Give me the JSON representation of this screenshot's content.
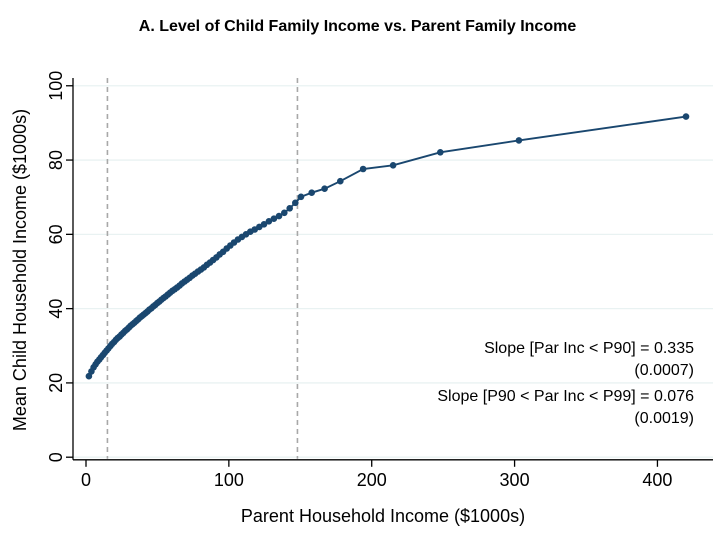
{
  "figure": {
    "title": "A. Level of Child Family Income vs. Parent Family Income"
  },
  "annotations": {
    "slope1_label": "Slope [Par Inc < P90] = 0.335",
    "slope1_se": "(0.0007)",
    "slope2_label": "Slope [P90 < Par Inc < P99] = 0.076",
    "slope2_se": "(0.0019)"
  },
  "chart_data": {
    "type": "scatter",
    "title": "A. Level of Child Family Income vs. Parent Family Income",
    "xlabel": "Parent Household Income ($1000s)",
    "ylabel": "Mean Child Household Income ($1000s)",
    "xlim": [
      -9,
      440
    ],
    "ylim": [
      -1,
      102
    ],
    "xticks": [
      0,
      100,
      200,
      300,
      400
    ],
    "yticks": [
      0,
      20,
      40,
      60,
      80,
      100
    ],
    "grid": "horizontal",
    "reference_lines_x": [
      15,
      148
    ],
    "reference_line_style": "dashed",
    "legend": "none",
    "series": [
      {
        "name": "mean-child-income-by-parent-income-bin",
        "marker": "circle",
        "line": true,
        "points": [
          [
            2.0,
            21.8
          ],
          [
            3.8,
            23.1
          ],
          [
            5.3,
            24.2
          ],
          [
            6.7,
            25.0
          ],
          [
            8.0,
            25.7
          ],
          [
            9.3,
            26.3
          ],
          [
            10.5,
            26.9
          ],
          [
            11.8,
            27.5
          ],
          [
            13.1,
            28.1
          ],
          [
            14.4,
            28.7
          ],
          [
            15.7,
            29.3
          ],
          [
            17.0,
            29.9
          ],
          [
            18.3,
            30.5
          ],
          [
            19.6,
            31.0
          ],
          [
            20.9,
            31.6
          ],
          [
            22.2,
            32.1
          ],
          [
            23.5,
            32.5
          ],
          [
            24.8,
            33.0
          ],
          [
            26.1,
            33.5
          ],
          [
            27.4,
            34.0
          ],
          [
            28.7,
            34.4
          ],
          [
            30.0,
            34.9
          ],
          [
            31.3,
            35.4
          ],
          [
            32.6,
            35.8
          ],
          [
            33.9,
            36.2
          ],
          [
            35.2,
            36.7
          ],
          [
            36.5,
            37.1
          ],
          [
            37.8,
            37.6
          ],
          [
            39.1,
            38.0
          ],
          [
            40.4,
            38.4
          ],
          [
            41.7,
            38.8
          ],
          [
            43.0,
            39.2
          ],
          [
            44.3,
            39.7
          ],
          [
            45.7,
            40.1
          ],
          [
            47.1,
            40.6
          ],
          [
            48.5,
            41.0
          ],
          [
            49.9,
            41.5
          ],
          [
            51.3,
            41.9
          ],
          [
            52.8,
            42.4
          ],
          [
            54.3,
            42.9
          ],
          [
            55.8,
            43.3
          ],
          [
            57.3,
            43.8
          ],
          [
            58.9,
            44.3
          ],
          [
            60.5,
            44.8
          ],
          [
            62.1,
            45.2
          ],
          [
            63.8,
            45.7
          ],
          [
            65.5,
            46.2
          ],
          [
            67.2,
            46.8
          ],
          [
            69.0,
            47.3
          ],
          [
            70.8,
            47.8
          ],
          [
            72.6,
            48.3
          ],
          [
            74.5,
            48.9
          ],
          [
            76.4,
            49.4
          ],
          [
            78.4,
            50.0
          ],
          [
            80.4,
            50.5
          ],
          [
            82.5,
            51.1
          ],
          [
            84.6,
            51.8
          ],
          [
            86.8,
            52.4
          ],
          [
            89.0,
            53.1
          ],
          [
            91.3,
            53.8
          ],
          [
            93.6,
            54.6
          ],
          [
            96.0,
            55.3
          ],
          [
            98.5,
            56.2
          ],
          [
            101.0,
            57.0
          ],
          [
            103.6,
            57.8
          ],
          [
            106.3,
            58.6
          ],
          [
            109.1,
            59.3
          ],
          [
            112.0,
            60.0
          ],
          [
            115.0,
            60.7
          ],
          [
            118.1,
            61.3
          ],
          [
            121.3,
            62.0
          ],
          [
            124.6,
            62.7
          ],
          [
            128.0,
            63.5
          ],
          [
            131.5,
            64.2
          ],
          [
            135.1,
            64.9
          ],
          [
            138.8,
            65.8
          ],
          [
            142.6,
            67.0
          ],
          [
            146.5,
            68.5
          ],
          [
            150.5,
            70.1
          ],
          [
            158,
            71.2
          ],
          [
            167,
            72.3
          ],
          [
            178,
            74.3
          ],
          [
            194,
            77.6
          ],
          [
            215,
            78.6
          ],
          [
            248,
            82.1
          ],
          [
            303,
            85.3
          ],
          [
            420,
            91.7
          ]
        ]
      }
    ],
    "annotations_text": [
      "Slope [Par Inc < P90] = 0.335",
      "(0.0007)",
      "Slope [P90 < Par Inc < P99] = 0.076",
      "(0.0019)"
    ],
    "colors": {
      "series": "#1a476f",
      "grid": "#e9f2f2",
      "reference": "#a8a8a8",
      "axis": "#000000",
      "background": "#ffffff"
    }
  }
}
